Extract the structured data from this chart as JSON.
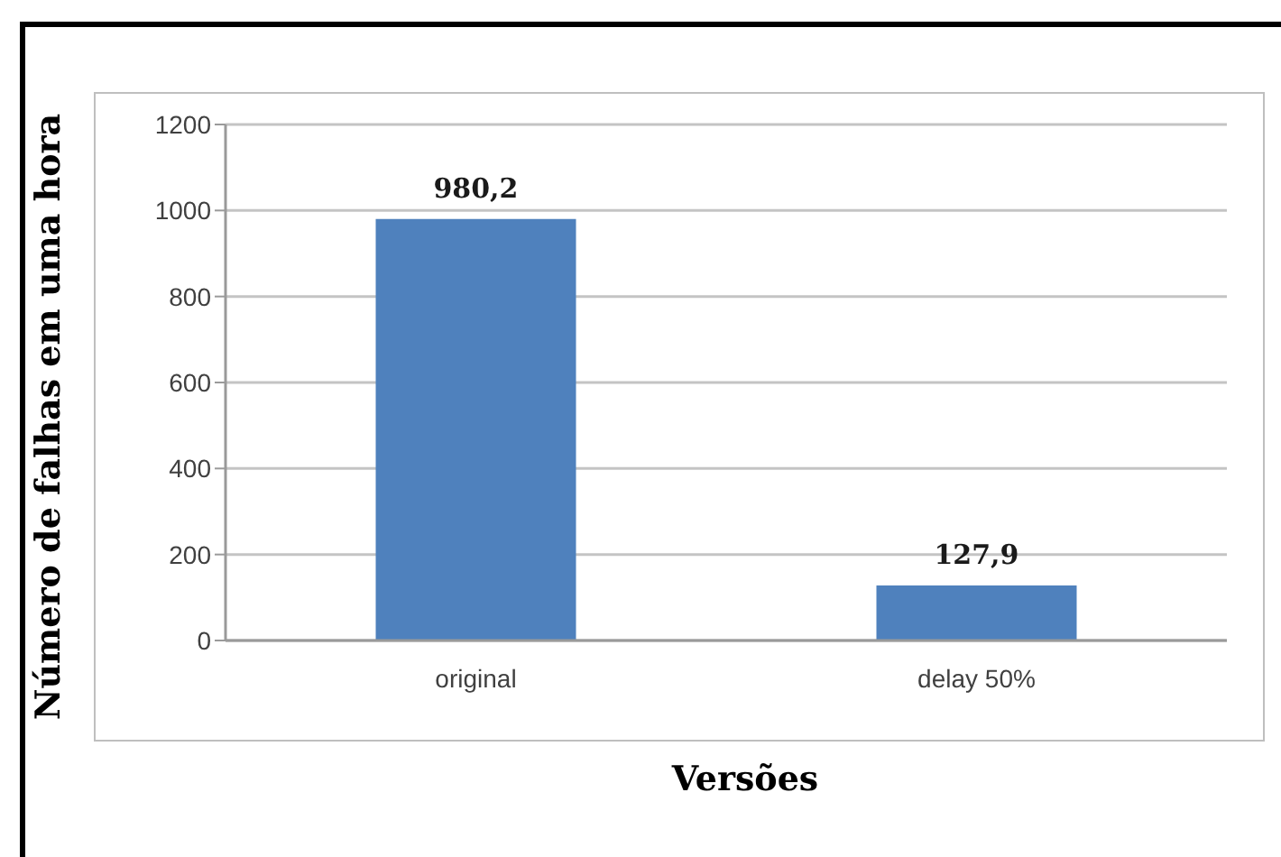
{
  "chart_data": {
    "type": "bar",
    "categories": [
      "original",
      "delay 50%"
    ],
    "values": [
      980.2,
      127.9
    ],
    "value_labels": [
      "980,2",
      "127,9"
    ],
    "color": "#4f81bd",
    "ylim": [
      0,
      1200
    ],
    "yticks": [
      0,
      200,
      400,
      600,
      800,
      1000,
      1200
    ],
    "grid": "y",
    "xlabel": "Versões",
    "ylabel": "Número de falhas em uma hora"
  }
}
